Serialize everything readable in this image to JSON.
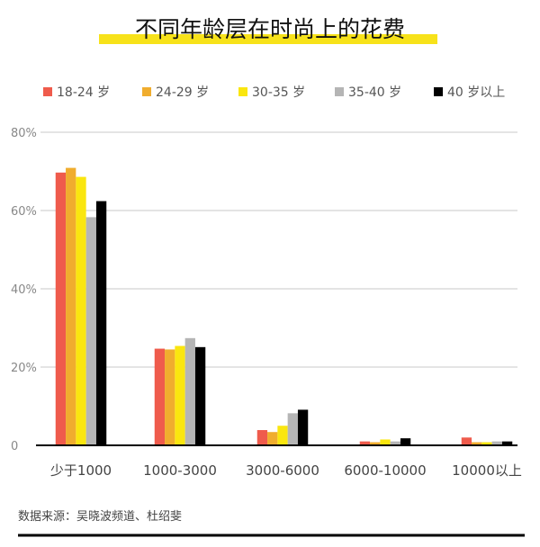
{
  "chart_data": {
    "type": "bar",
    "title": "不同年龄层在时尚上的花费",
    "categories": [
      "少于1000",
      "1000-3000",
      "3000-6000",
      "6000-10000",
      "10000以上"
    ],
    "series": [
      {
        "name": "18-24 岁",
        "color": "#ef5b4c",
        "values": [
          69.7,
          24.7,
          3.9,
          1.0,
          2.0
        ]
      },
      {
        "name": "24-29 岁",
        "color": "#f0ad2e",
        "values": [
          70.9,
          24.5,
          3.4,
          0.8,
          0.8
        ]
      },
      {
        "name": "30-35 岁",
        "color": "#fae60f",
        "values": [
          68.6,
          25.4,
          5.0,
          1.5,
          0.8
        ]
      },
      {
        "name": "35-40 岁",
        "color": "#b5b5b5",
        "values": [
          58.3,
          27.4,
          8.2,
          1.0,
          1.0
        ]
      },
      {
        "name": "40 岁以上",
        "color": "#000000",
        "values": [
          62.4,
          25.1,
          9.1,
          1.8,
          1.0
        ]
      }
    ],
    "yticks": [
      "0",
      "20%",
      "40%",
      "60%",
      "80%"
    ],
    "ylim": [
      0,
      80
    ],
    "grid": true,
    "legend": "top",
    "xlabel": "",
    "ylabel": "",
    "title_highlight_color": "#f7e21a"
  },
  "source": "数据来源：吴晓波频道、杜绍斐"
}
